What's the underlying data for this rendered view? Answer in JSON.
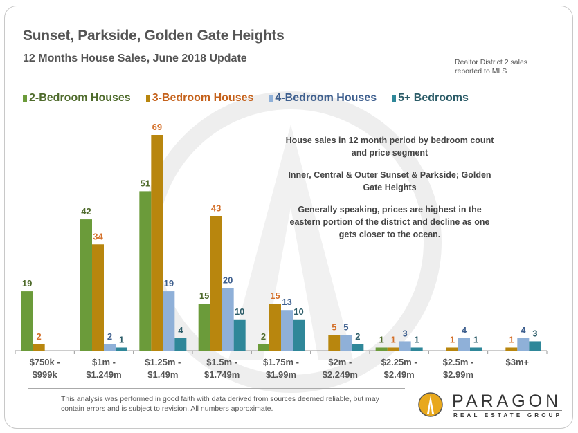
{
  "header": {
    "title": "Sunset, Parkside, Golden Gate Heights",
    "subtitle": "12 Months House Sales, June 2018 Update",
    "note_line1": "Realtor District  2 sales",
    "note_line2": "reported to MLS"
  },
  "annotation": {
    "p1": "House sales in 12 month period by bedroom count and price segment",
    "p2": "Inner, Central & Outer Sunset & Parkside; Golden Gate Heights",
    "p3": "Generally speaking, prices are highest in the eastern portion of the district and decline as one gets closer to the ocean."
  },
  "footer": {
    "text": "This analysis was performed in good faith with data derived from sources deemed reliable, but may contain errors and is subject to revision. All numbers approximate."
  },
  "logo": {
    "name": "PARAGON",
    "tagline": "REAL ESTATE GROUP"
  },
  "chart_data": {
    "type": "bar",
    "title": "Sunset, Parkside, Golden Gate Heights",
    "xlabel": "",
    "ylabel": "",
    "ylim": [
      0,
      69
    ],
    "grid": false,
    "legend_position": "top",
    "categories": [
      [
        "$750k -",
        "$999k"
      ],
      [
        "$1m -",
        "$1.249m"
      ],
      [
        "$1.25m -",
        "$1.49m"
      ],
      [
        "$1.5m -",
        "$1.749m"
      ],
      [
        "$1.75m -",
        "$1.99m"
      ],
      [
        "$2m -",
        "$2.249m"
      ],
      [
        "$2.25m -",
        "$2.49m"
      ],
      [
        "$2.5m -",
        "$2.99m"
      ],
      [
        "$3m+",
        ""
      ]
    ],
    "series": [
      {
        "name": "2-Bedroom Houses",
        "color": "#6b9b3a",
        "label_color": "#4f6b2c",
        "values": [
          19,
          42,
          51,
          15,
          2,
          null,
          1,
          null,
          null
        ]
      },
      {
        "name": "3-Bedroom Houses",
        "color": "#b8860e",
        "label_color": "#d4702a",
        "values": [
          2,
          34,
          69,
          43,
          15,
          5,
          1,
          1,
          1
        ]
      },
      {
        "name": "4-Bedroom Houses",
        "color": "#8fb0d8",
        "label_color": "#3e5f8e",
        "values": [
          null,
          2,
          19,
          20,
          13,
          5,
          3,
          4,
          4
        ]
      },
      {
        "name": "5+ Bedrooms",
        "color": "#2f8799",
        "label_color": "#2c5c68",
        "values": [
          null,
          1,
          4,
          10,
          10,
          2,
          1,
          1,
          3
        ]
      }
    ]
  }
}
